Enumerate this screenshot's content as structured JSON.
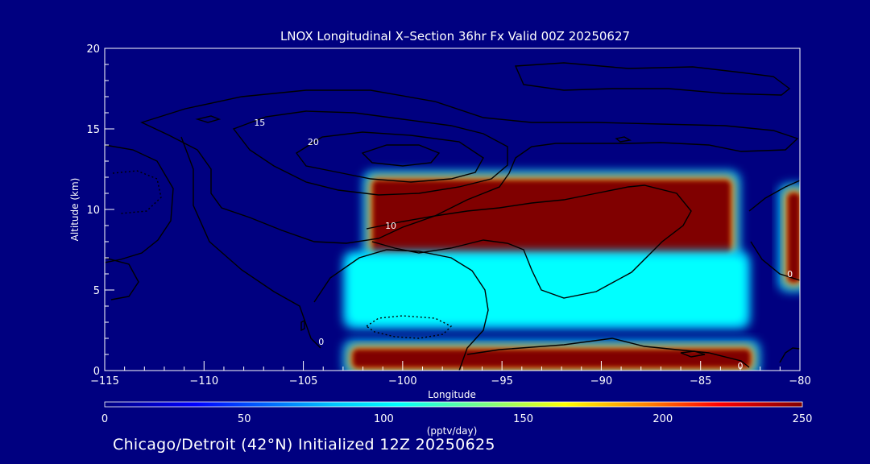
{
  "chart_data": {
    "type": "heatmap",
    "title": "LNOX Longitudinal X–Section 36hr  Fx Valid 00Z 20250627",
    "xlabel": "Longitude",
    "ylabel": "Altitude (km)",
    "xlim": [
      -115,
      -80
    ],
    "ylim": [
      0,
      20
    ],
    "xticks": [
      -115,
      -110,
      -105,
      -100,
      -95,
      -90,
      -85,
      -80
    ],
    "xtick_labels": [
      "−115",
      "−110",
      "−105",
      "−100",
      "−95",
      "−90",
      "−85",
      "−80"
    ],
    "yticks": [
      0,
      5,
      10,
      15,
      20
    ],
    "ytick_labels": [
      "0",
      "5",
      "10",
      "15",
      "20"
    ],
    "colorbar": {
      "label": "(pptv/day)",
      "range": [
        0,
        250
      ],
      "ticks": [
        0,
        50,
        100,
        150,
        200,
        250
      ],
      "tick_labels": [
        "0",
        "50",
        "100",
        "150",
        "200",
        "250"
      ],
      "colors": [
        "#000080",
        "#0000ff",
        "#00c8ff",
        "#00ffff",
        "#7fff7f",
        "#ffff00",
        "#ff7f00",
        "#ff0000",
        "#800000"
      ]
    },
    "contour_labels": [
      {
        "text": "15",
        "lon": -107.2,
        "alt": 15.2
      },
      {
        "text": "20",
        "lon": -104.5,
        "alt": 14.0
      },
      {
        "text": "10",
        "lon": -100.6,
        "alt": 8.8
      },
      {
        "text": "0",
        "lon": -80.5,
        "alt": 5.8
      },
      {
        "text": "0",
        "lon": -83.0,
        "alt": 0.1
      },
      {
        "text": "0",
        "lon": -104.1,
        "alt": 1.6
      }
    ],
    "lnox_regions": [
      {
        "lon": [
          -101.5,
          -83.5
        ],
        "alt": [
          7.2,
          11.8
        ],
        "value": 250
      },
      {
        "lon": [
          -102.5,
          -83.0
        ],
        "alt": [
          3.2,
          6.8
        ],
        "value": 90
      },
      {
        "lon": [
          -102.5,
          -82.5
        ],
        "alt": [
          0.2,
          1.3
        ],
        "value": 250
      },
      {
        "lon": [
          -80.6,
          -80
        ],
        "alt": [
          5.5,
          11.0
        ],
        "value": 250
      }
    ]
  },
  "caption": "Chicago/Detroit (42°N) Initialized 12Z 20250625"
}
